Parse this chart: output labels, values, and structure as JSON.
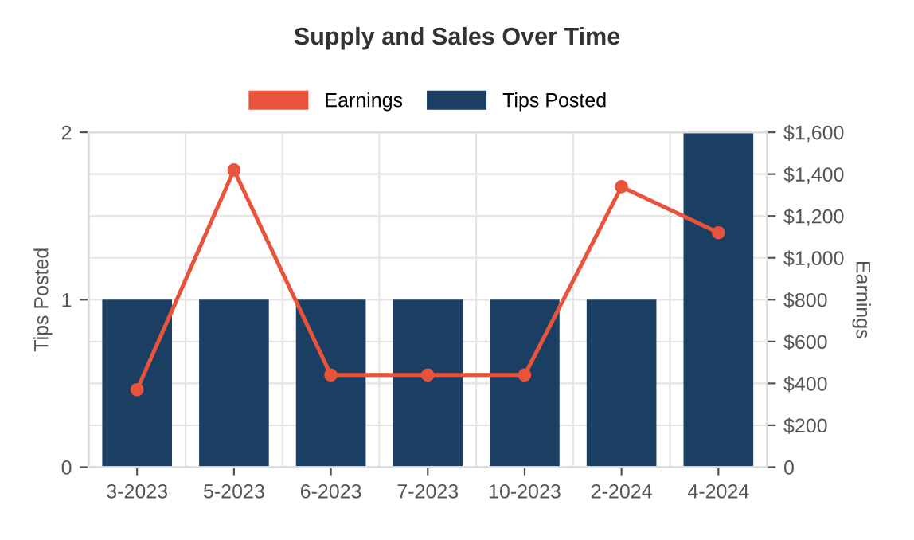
{
  "chart_data": {
    "type": "bar",
    "title": "Supply and Sales Over Time",
    "categories": [
      "3-2023",
      "5-2023",
      "6-2023",
      "7-2023",
      "10-2023",
      "2-2024",
      "4-2024"
    ],
    "series": [
      {
        "name": "Earnings",
        "type": "line",
        "axis": "y2",
        "color": "#e8533b",
        "values": [
          370,
          1420,
          440,
          440,
          440,
          1340,
          1120
        ]
      },
      {
        "name": "Tips Posted",
        "color": "#1b3f62",
        "values": [
          1,
          1,
          1,
          1,
          1,
          1,
          2
        ]
      }
    ],
    "ylabel": "Tips Posted",
    "y2label": "Earnings",
    "ylim": [
      0,
      2
    ],
    "yticks": [
      0,
      1,
      2
    ],
    "y2lim": [
      0,
      1600
    ],
    "y2ticks": [
      {
        "value": 0,
        "label": "0"
      },
      {
        "value": 200,
        "label": "$200"
      },
      {
        "value": 400,
        "label": "$400"
      },
      {
        "value": 600,
        "label": "$600"
      },
      {
        "value": 800,
        "label": "$800"
      },
      {
        "value": 1000,
        "label": "$1,000"
      },
      {
        "value": 1200,
        "label": "$1,200"
      },
      {
        "value": 1400,
        "label": "$1,400"
      },
      {
        "value": 1600,
        "label": "$1,600"
      }
    ],
    "grid": true,
    "legend": "top",
    "marker": "circle"
  }
}
